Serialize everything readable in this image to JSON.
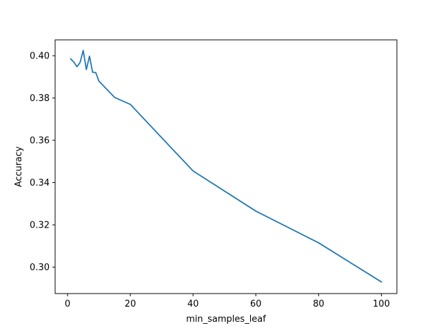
{
  "chart_data": {
    "type": "line",
    "title": "",
    "xlabel": "min_samples_leaf",
    "ylabel": "Accuracy",
    "xlim": [
      -3.95,
      104.95
    ],
    "ylim": [
      0.2875,
      0.4075
    ],
    "grid": false,
    "xticks": [
      0,
      20,
      40,
      60,
      80,
      100
    ],
    "yticks": [
      0.3,
      0.32,
      0.34,
      0.36,
      0.38,
      0.4
    ],
    "xtick_labels": [
      "0",
      "20",
      "40",
      "60",
      "80",
      "100"
    ],
    "ytick_labels": [
      "0.30",
      "0.32",
      "0.34",
      "0.36",
      "0.38",
      "0.40"
    ],
    "series": [
      {
        "color": "#1f77b4",
        "x": [
          1,
          2,
          3,
          4,
          5,
          6,
          7,
          8,
          9,
          10,
          15,
          20,
          40,
          60,
          80,
          100
        ],
        "y": [
          0.3985,
          0.397,
          0.3948,
          0.3968,
          0.4025,
          0.3935,
          0.3998,
          0.3922,
          0.392,
          0.388,
          0.3803,
          0.377,
          0.3455,
          0.3265,
          0.3115,
          0.293
        ]
      }
    ]
  }
}
